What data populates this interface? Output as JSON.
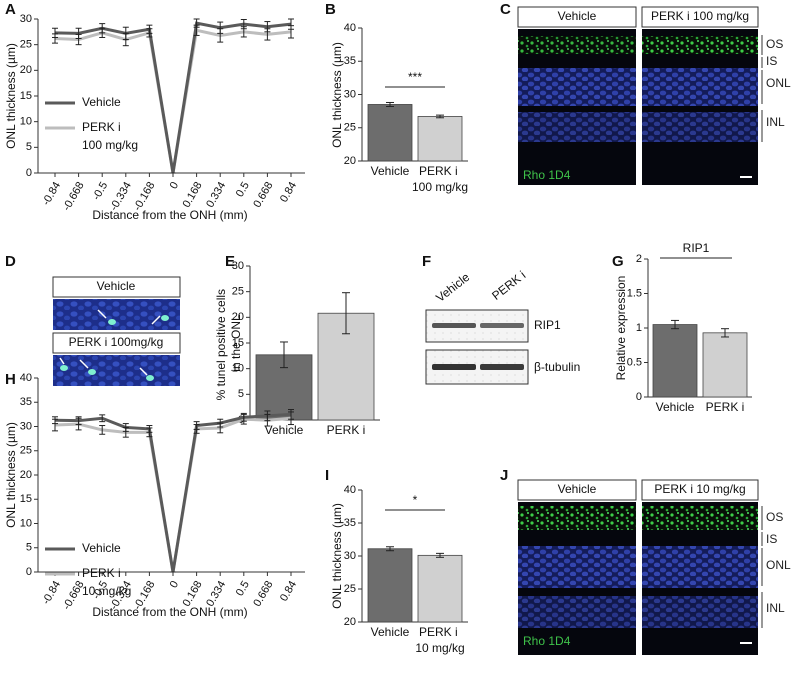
{
  "panel_letters": [
    "A",
    "B",
    "C",
    "D",
    "E",
    "F",
    "G",
    "H",
    "I",
    "J"
  ],
  "chart_data": [
    {
      "type": "line",
      "ylabel": "ONL thickness (µm)",
      "xlabel": "Distance from the ONH (mm)",
      "categories": [
        "-0.84",
        "-0.668",
        "-0.5",
        "-0.334",
        "-0.168",
        "0",
        "0.168",
        "0.334",
        "0.5",
        "0.668",
        "0.84"
      ],
      "series": [
        {
          "name": "Vehicle",
          "color": "#5a5a5a",
          "values": [
            27.3,
            27.2,
            28.2,
            27.2,
            28.0,
            0,
            29.2,
            28.3,
            29.0,
            28.5,
            29.0
          ],
          "errors": [
            0.9,
            1.0,
            0.9,
            1.2,
            0.8,
            0,
            0.8,
            1.1,
            0.9,
            1.0,
            1.0
          ]
        },
        {
          "name": "PERK i 100 mg/kg",
          "color": "#bdbdbd",
          "values": [
            26.2,
            26.0,
            27.3,
            26.0,
            27.3,
            0,
            27.8,
            26.8,
            27.5,
            27.0,
            27.5
          ],
          "errors": [
            0.9,
            1.0,
            0.9,
            1.2,
            0.8,
            0,
            1.0,
            1.3,
            1.0,
            1.1,
            1.2
          ]
        }
      ],
      "ylim": [
        0,
        30
      ],
      "yticks": [
        0,
        5,
        10,
        15,
        20,
        25,
        30
      ]
    },
    {
      "type": "bar",
      "ylabel": "ONL thickness (µm)",
      "categories": [
        "Vehicle",
        "PERK i 100 mg/kg"
      ],
      "values": [
        28.5,
        26.7
      ],
      "errors": [
        0.3,
        0.2
      ],
      "colors": [
        "#6d6d6d",
        "#d0d0d0"
      ],
      "ylim": [
        20,
        40
      ],
      "yticks": [
        20,
        25,
        30,
        35,
        40
      ],
      "annotation": "***"
    },
    {
      "type": "bar",
      "ylabel": "% tunel positive cells in the ONL",
      "categories": [
        "Vehicle",
        "PERK i"
      ],
      "values": [
        12.7,
        20.8
      ],
      "errors": [
        2.5,
        4.0
      ],
      "colors": [
        "#6d6d6d",
        "#d0d0d0"
      ],
      "ylim": [
        0,
        30
      ],
      "yticks": [
        0,
        5,
        10,
        15,
        20,
        25,
        30
      ]
    },
    {
      "type": "bar",
      "ylabel": "Relative expression",
      "categories": [
        "Vehicle",
        "PERK i"
      ],
      "values": [
        1.05,
        0.93
      ],
      "errors": [
        0.06,
        0.06
      ],
      "colors": [
        "#6d6d6d",
        "#d0d0d0"
      ],
      "ylim": [
        0,
        2
      ],
      "yticks": [
        0,
        0.5,
        1,
        1.5,
        2
      ],
      "annotation": "RIP1"
    },
    {
      "type": "line",
      "ylabel": "ONL thickness (µm)",
      "xlabel": "Distance from the ONH (mm)",
      "categories": [
        "-0.84",
        "-0.668",
        "-0.5",
        "-0.334",
        "-0.168",
        "0",
        "0.168",
        "0.334",
        "0.5",
        "0.668",
        "0.84"
      ],
      "series": [
        {
          "name": "Vehicle",
          "color": "#5a5a5a",
          "values": [
            31.3,
            31.2,
            31.7,
            29.8,
            29.5,
            0,
            30.2,
            30.7,
            31.9,
            32.2,
            32.5
          ],
          "errors": [
            0.7,
            0.8,
            0.7,
            0.8,
            0.7,
            0,
            0.8,
            0.8,
            0.8,
            1.0,
            1.0
          ]
        },
        {
          "name": "PERK i 10 mg/kg",
          "color": "#bdbdbd",
          "values": [
            30.3,
            30.5,
            29.3,
            28.8,
            28.8,
            0,
            29.5,
            29.7,
            31.5,
            31.3,
            31.7
          ],
          "errors": [
            1.2,
            1.2,
            0.9,
            1.0,
            0.9,
            0,
            0.9,
            1.0,
            1.0,
            1.2,
            1.3
          ]
        }
      ],
      "ylim": [
        0,
        40
      ],
      "yticks": [
        0,
        5,
        10,
        15,
        20,
        25,
        30,
        35,
        40
      ]
    },
    {
      "type": "bar",
      "ylabel": "ONL thickness (µm)",
      "categories": [
        "Vehicle",
        "PERK i 10 mg/kg"
      ],
      "values": [
        31.1,
        30.1
      ],
      "errors": [
        0.3,
        0.3
      ],
      "colors": [
        "#6d6d6d",
        "#d0d0d0"
      ],
      "ylim": [
        20,
        40
      ],
      "yticks": [
        20,
        25,
        30,
        35,
        40
      ],
      "annotation": "*"
    }
  ],
  "images": {
    "C": {
      "headers": [
        "Vehicle",
        "PERK i 100 mg/kg"
      ],
      "layers": [
        "OS",
        "IS",
        "ONL",
        "INL"
      ],
      "stain": "Rho 1D4"
    },
    "D": {
      "headers": [
        "Vehicle",
        "PERK i  100mg/kg"
      ]
    },
    "F": {
      "lanes": [
        "Vehicle",
        "PERK i"
      ],
      "bands": [
        "RIP1",
        "β-tubulin"
      ]
    },
    "J": {
      "headers": [
        "Vehicle",
        "PERK i 10 mg/kg"
      ],
      "layers": [
        "OS",
        "IS",
        "ONL",
        "INL"
      ],
      "stain": "Rho 1D4"
    }
  }
}
